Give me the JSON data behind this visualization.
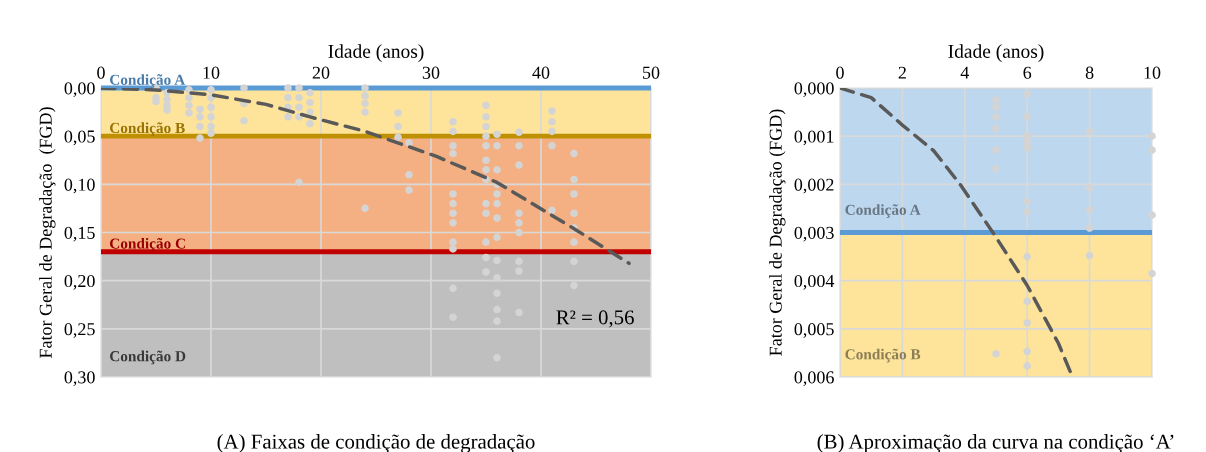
{
  "chart_data": [
    {
      "type": "scatter",
      "title": "(A) Faixas de condição de degradação",
      "xlabel": "Idade (anos)",
      "ylabel": "Fator Geral de Degradação  (FGD)",
      "annotations": [
        "R² = 0,56"
      ],
      "xlim": [
        0,
        50
      ],
      "xticks": [
        0,
        10,
        20,
        30,
        40,
        50
      ],
      "ylim": [
        0.3,
        0
      ],
      "yticks": [
        {
          "value": 0,
          "label": "0,00"
        },
        {
          "value": 0.05,
          "label": "0,05"
        },
        {
          "value": 0.1,
          "label": "0,10"
        },
        {
          "value": 0.15,
          "label": "0,15"
        },
        {
          "value": 0.2,
          "label": "0,20"
        },
        {
          "value": 0.25,
          "label": "0,25"
        },
        {
          "value": 0.3,
          "label": "0,30"
        }
      ],
      "grid": true,
      "bands": [
        {
          "axis": "y",
          "from": 0,
          "to": 0.05,
          "color": "#fde49a"
        },
        {
          "axis": "y",
          "from": 0.05,
          "to": 0.17,
          "color": "#f4b083"
        },
        {
          "axis": "y",
          "from": 0.17,
          "to": 0.3,
          "color": "#bfbfbf",
          "label": "Condição D"
        }
      ],
      "ref_lines": [
        {
          "axis": "y",
          "value": 0,
          "label": "Condição A",
          "color": "#5b9bd5"
        },
        {
          "axis": "y",
          "value": 0.05,
          "label": "Condição B",
          "color": "#bf9000"
        },
        {
          "axis": "y",
          "value": 0.17,
          "label": "Condição C",
          "color": "#c00000"
        }
      ],
      "series": [
        {
          "marker": "circle",
          "color": "#d4d4d4",
          "x": [
            5,
            5,
            5,
            6,
            6,
            6,
            6,
            8,
            8,
            8,
            8,
            9,
            9,
            9,
            9,
            10,
            10,
            10,
            10,
            10,
            10,
            13,
            13,
            13,
            17,
            17,
            17,
            17,
            18,
            18,
            18,
            18,
            18,
            19,
            19,
            19,
            19,
            24,
            24,
            24,
            24,
            24,
            27,
            27,
            27,
            28,
            28,
            28,
            32,
            32,
            32,
            32,
            32,
            32,
            32,
            32,
            32,
            32,
            32,
            32,
            35,
            35,
            35,
            35,
            35,
            35,
            35,
            35,
            35,
            35,
            35,
            35,
            35,
            36,
            36,
            36,
            36,
            36,
            36,
            36,
            36,
            36,
            36,
            36,
            36,
            36,
            36,
            38,
            38,
            38,
            38,
            38,
            38,
            38,
            38,
            38,
            41,
            41,
            41,
            41,
            41,
            43,
            43,
            43,
            43,
            43,
            43,
            43,
            43
          ],
          "values": [
            0,
            0.01,
            0.014,
            0.005,
            0.012,
            0.018,
            0.023,
            0.002,
            0.01,
            0.018,
            0.026,
            0.022,
            0.03,
            0.04,
            0.052,
            0.002,
            0.01,
            0.02,
            0.03,
            0.04,
            0.047,
            0,
            0.016,
            0.034,
            0,
            0.01,
            0.02,
            0.03,
            0,
            0.01,
            0.02,
            0.03,
            0.098,
            0.005,
            0.015,
            0.025,
            0.037,
            0,
            0.008,
            0.016,
            0.025,
            0.125,
            0.026,
            0.04,
            0.051,
            0.057,
            0.09,
            0.106,
            0.035,
            0.045,
            0.06,
            0.068,
            0.11,
            0.12,
            0.13,
            0.14,
            0.16,
            0.167,
            0.208,
            0.238,
            0.018,
            0.03,
            0.04,
            0.05,
            0.06,
            0.075,
            0.085,
            0.095,
            0.12,
            0.13,
            0.16,
            0.176,
            0.191,
            0.048,
            0.06,
            0.085,
            0.1,
            0.11,
            0.12,
            0.135,
            0.155,
            0.179,
            0.197,
            0.213,
            0.23,
            0.242,
            0.28,
            0.046,
            0.06,
            0.08,
            0.13,
            0.14,
            0.15,
            0.18,
            0.19,
            0.233,
            0.024,
            0.035,
            0.045,
            0.06,
            0.127,
            0.068,
            0.095,
            0.11,
            0.13,
            0.145,
            0.16,
            0.18,
            0.205
          ]
        },
        {
          "type": "line",
          "color": "#595959",
          "line_style": "dashed",
          "x": [
            0,
            5,
            10,
            15,
            19,
            24,
            30.5,
            36,
            43,
            48
          ],
          "values": [
            0,
            0.002,
            0.007,
            0.017,
            0.03,
            0.045,
            0.071,
            0.098,
            0.146,
            0.182
          ]
        }
      ]
    },
    {
      "type": "scatter",
      "title": "(B) Aproximação da curva na condição ‘A’",
      "xlabel": "Idade (anos)",
      "ylabel": "Fator Geral de Degradação (FGD)",
      "xlim": [
        0,
        10
      ],
      "xticks": [
        0,
        2,
        4,
        6,
        8,
        10
      ],
      "ylim": [
        0.006,
        0
      ],
      "yticks": [
        {
          "value": 0,
          "label": "0,000"
        },
        {
          "value": 0.001,
          "label": "0,001"
        },
        {
          "value": 0.002,
          "label": "0,002"
        },
        {
          "value": 0.003,
          "label": "0,003"
        },
        {
          "value": 0.004,
          "label": "0,004"
        },
        {
          "value": 0.005,
          "label": "0,005"
        },
        {
          "value": 0.006,
          "label": "0,006"
        }
      ],
      "grid": true,
      "bands": [
        {
          "axis": "y",
          "from": 0,
          "to": 0.003,
          "color": "#bdd7ee",
          "label": "Condição A"
        },
        {
          "axis": "y",
          "from": 0.003,
          "to": 0.006,
          "color": "#fde49a",
          "label": "Condição B"
        }
      ],
      "ref_lines": [
        {
          "axis": "y",
          "value": 0.003,
          "color": "#5b9bd5"
        }
      ],
      "series": [
        {
          "marker": "circle",
          "color": "#d4d4d4",
          "x": [
            5,
            5,
            5,
            5,
            5,
            5,
            5,
            6,
            6,
            6,
            6,
            6,
            6,
            6,
            6,
            6,
            6,
            6,
            6,
            6,
            8,
            8,
            8,
            8,
            8,
            10,
            10,
            10,
            10
          ],
          "values": [
            0.00025,
            0.0004,
            0.0006,
            0.00084,
            0.00129,
            0.00167,
            0.00552,
            0.00013,
            0.0006,
            0.00098,
            0.00108,
            0.00118,
            0.00125,
            0.00236,
            0.00257,
            0.0035,
            0.00443,
            0.00488,
            0.00547,
            0.00577,
            0.0009,
            0.00207,
            0.00253,
            0.00291,
            0.00348,
            0.001,
            0.00129,
            0.00264,
            0.00385
          ]
        },
        {
          "type": "line",
          "color": "#595959",
          "line_style": "dashed",
          "x": [
            0,
            1,
            2,
            3,
            3.85,
            4.9,
            6,
            7,
            7.45
          ],
          "values": [
            0,
            0.0002,
            0.00077,
            0.0013,
            0.002,
            0.003,
            0.0041,
            0.0053,
            0.006
          ]
        }
      ]
    }
  ]
}
